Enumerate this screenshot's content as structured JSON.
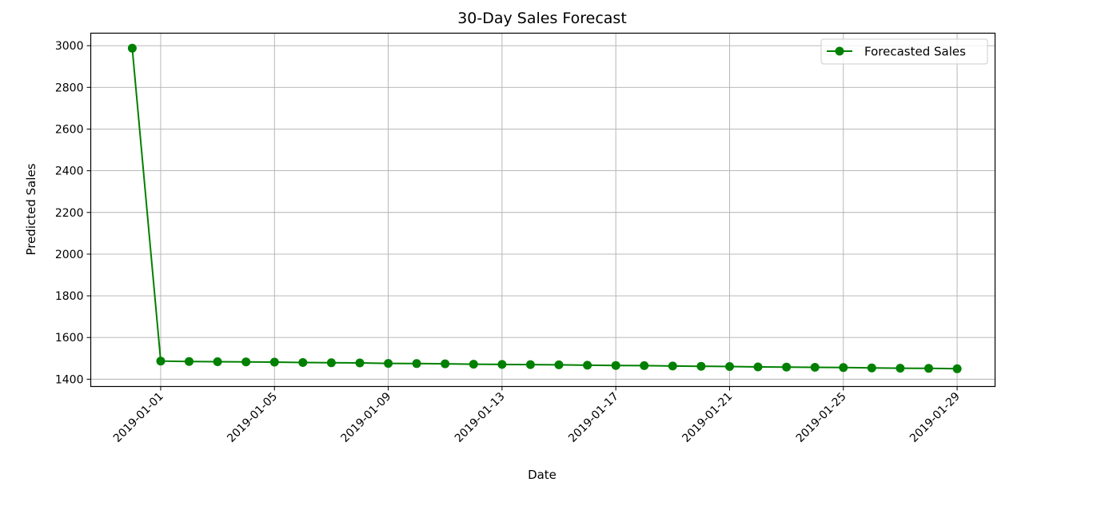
{
  "chart_data": {
    "type": "line",
    "title": "30-Day Sales Forecast",
    "xlabel": "Date",
    "ylabel": "Predicted Sales",
    "x": [
      "2018-12-31",
      "2019-01-01",
      "2019-01-02",
      "2019-01-03",
      "2019-01-04",
      "2019-01-05",
      "2019-01-06",
      "2019-01-07",
      "2019-01-08",
      "2019-01-09",
      "2019-01-10",
      "2019-01-11",
      "2019-01-12",
      "2019-01-13",
      "2019-01-14",
      "2019-01-15",
      "2019-01-16",
      "2019-01-17",
      "2019-01-18",
      "2019-01-19",
      "2019-01-20",
      "2019-01-21",
      "2019-01-22",
      "2019-01-23",
      "2019-01-24",
      "2019-01-25",
      "2019-01-26",
      "2019-01-27",
      "2019-01-28",
      "2019-01-29"
    ],
    "series": [
      {
        "name": "Forecasted Sales",
        "color": "#008000",
        "marker": "circle",
        "values": [
          2988,
          1487,
          1485,
          1484,
          1483,
          1482,
          1480,
          1479,
          1478,
          1476,
          1475,
          1474,
          1472,
          1471,
          1470,
          1469,
          1467,
          1466,
          1465,
          1463,
          1462,
          1461,
          1459,
          1458,
          1457,
          1456,
          1454,
          1453,
          1452,
          1450
        ]
      }
    ],
    "xlim": [
      "2018-12-29T13:00",
      "2019-01-30T08:00"
    ],
    "ylim": [
      1365,
      3060
    ],
    "yticks": [
      1400,
      1600,
      1800,
      2000,
      2200,
      2400,
      2600,
      2800,
      3000
    ],
    "xticks": [
      "2019-01-01",
      "2019-01-05",
      "2019-01-09",
      "2019-01-13",
      "2019-01-17",
      "2019-01-21",
      "2019-01-25",
      "2019-01-29"
    ],
    "xtick_rotation": 45,
    "grid": true,
    "legend_position": "top-right"
  }
}
